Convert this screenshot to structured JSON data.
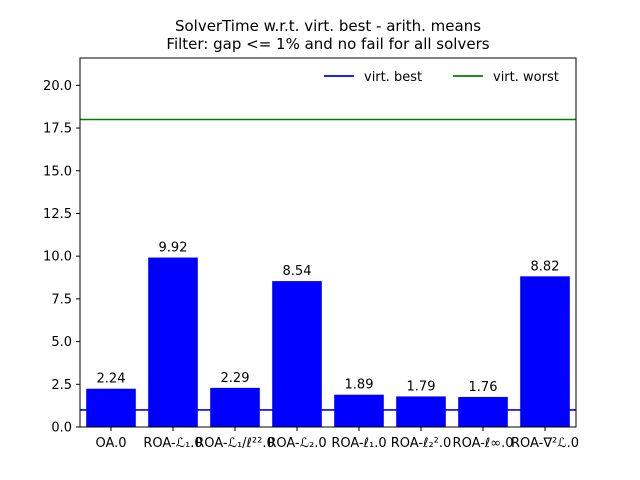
{
  "chart_data": {
    "type": "bar",
    "title": "SolverTime w.r.t. virt. best - arith. means",
    "subtitle": "Filter: gap <= 1% and no fail for all solvers",
    "xlabel": "",
    "ylabel": "",
    "categories": [
      "OA.0",
      "ROA-ℒ₁.0",
      "ROA-ℒ₁/ℓ²².0",
      "ROA-ℒ₂.0",
      "ROA-ℓ₁.0",
      "ROA-ℓ₂².0",
      "ROA-ℓ∞.0",
      "ROA-∇²ℒ.0"
    ],
    "values": [
      2.24,
      9.92,
      2.29,
      8.54,
      1.89,
      1.79,
      1.76,
      8.82
    ],
    "data_labels": [
      "2.24",
      "9.92",
      "2.29",
      "8.54",
      "1.89",
      "1.79",
      "1.76",
      "8.82"
    ],
    "ylim": [
      0,
      21.6
    ],
    "yticks": [
      0.0,
      2.5,
      5.0,
      7.5,
      10.0,
      12.5,
      15.0,
      17.5,
      20.0
    ],
    "ytick_labels": [
      "0.0",
      "2.5",
      "5.0",
      "7.5",
      "10.0",
      "12.5",
      "15.0",
      "17.5",
      "20.0"
    ],
    "bar_color": "#0000ff",
    "reference_lines": [
      {
        "name": "virt. best",
        "value": 1.0,
        "color": "#0000ff"
      },
      {
        "name": "virt. worst",
        "value": 18.0,
        "color": "#008000"
      }
    ],
    "legend_position": "top-right",
    "grid": false
  }
}
